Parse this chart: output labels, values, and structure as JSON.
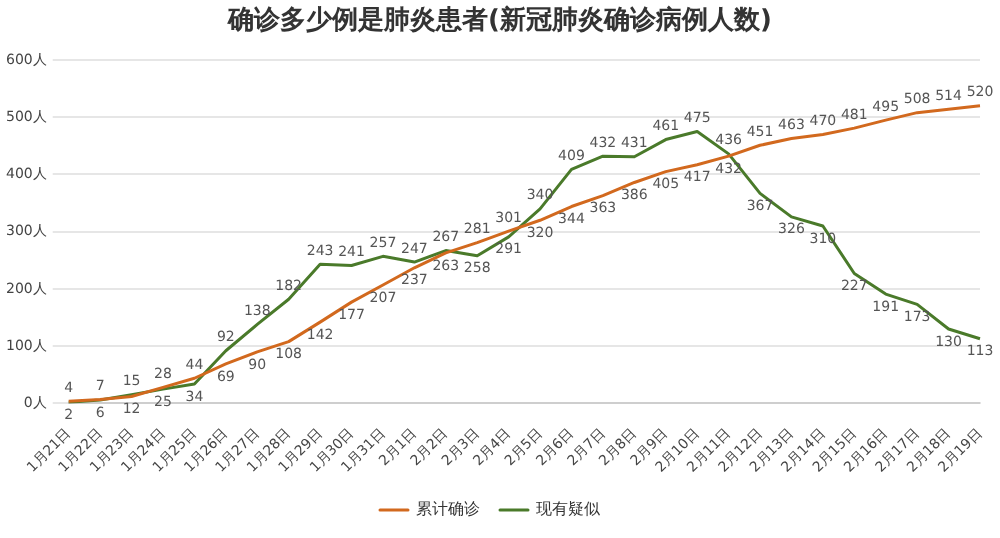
{
  "chart_data": {
    "type": "line",
    "title": "确诊多少例是肺炎患者(新冠肺炎确诊病例人数)",
    "categories": [
      "1月21日",
      "1月22日",
      "1月23日",
      "1月24日",
      "1月25日",
      "1月26日",
      "1月27日",
      "1月28日",
      "1月29日",
      "1月30日",
      "1月31日",
      "2月1日",
      "2月2日",
      "2月3日",
      "2月4日",
      "2月5日",
      "2月6日",
      "2月7日",
      "2月8日",
      "2月9日",
      "2月10日",
      "2月11日",
      "2月12日",
      "2月13日",
      "2月14日",
      "2月15日",
      "2月16日",
      "2月17日",
      "2月18日",
      "2月19日"
    ],
    "series": [
      {
        "name": "累计确诊",
        "color": "#d2691e",
        "values": [
          4,
          7,
          12,
          28,
          44,
          69,
          90,
          108,
          142,
          177,
          207,
          237,
          263,
          281,
          301,
          320,
          344,
          363,
          386,
          405,
          417,
          432,
          451,
          463,
          470,
          481,
          495,
          508,
          514,
          520
        ]
      },
      {
        "name": "现有疑似",
        "color": "#4a7a2a",
        "values": [
          2,
          6,
          15,
          25,
          34,
          92,
          138,
          182,
          243,
          241,
          257,
          247,
          267,
          258,
          291,
          340,
          409,
          432,
          431,
          461,
          475,
          436,
          367,
          326,
          310,
          227,
          191,
          173,
          130,
          113
        ]
      }
    ],
    "ylim": [
      0,
      600
    ],
    "yticks": [
      {
        "value": 0,
        "label": "0人"
      },
      {
        "value": 100,
        "label": "100人"
      },
      {
        "value": 200,
        "label": "200人"
      },
      {
        "value": 300,
        "label": "300人"
      },
      {
        "value": 400,
        "label": "400人"
      },
      {
        "value": 500,
        "label": "500人"
      },
      {
        "value": 600,
        "label": "600人"
      }
    ],
    "grid": "y",
    "legend": "bottom",
    "marker": "none",
    "line_style": "solid",
    "data_labels": true
  }
}
